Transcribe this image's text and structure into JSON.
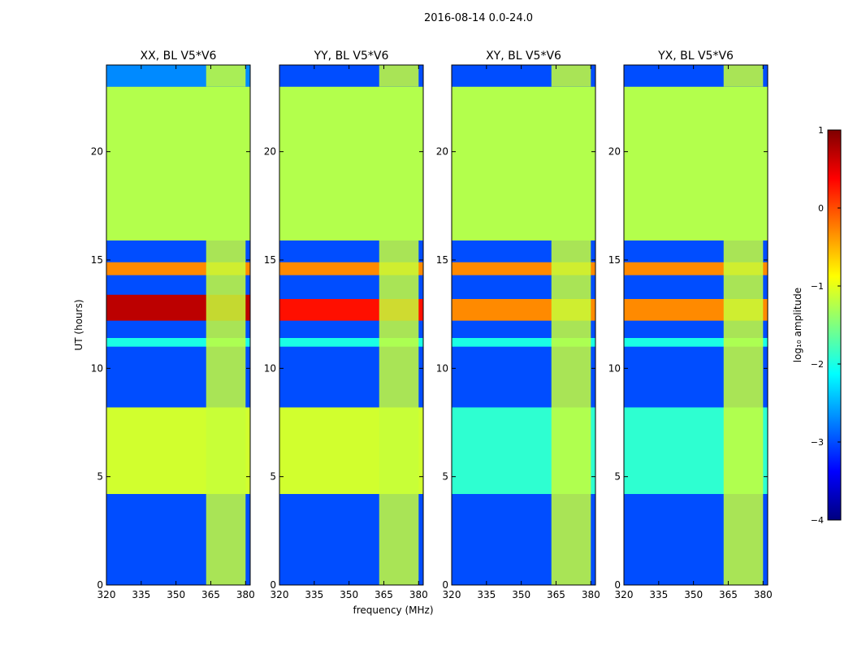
{
  "chart_data": {
    "type": "heatmap",
    "suptitle": "2016-08-14 0.0-24.0",
    "xlabel": "frequency (MHz)",
    "ylabel": "UT (hours)",
    "xlim": [
      320,
      382
    ],
    "ylim": [
      0,
      24
    ],
    "xticks": [
      320,
      335,
      350,
      365,
      380
    ],
    "xtick_labels": [
      "320",
      "335",
      "350",
      "365",
      "380"
    ],
    "yticks": [
      0,
      5,
      10,
      15,
      20
    ],
    "ytick_labels": [
      "0",
      "5",
      "10",
      "15",
      "20"
    ],
    "panels": [
      {
        "title": "XX, BL V5*V6",
        "bands": [
          {
            "start": 0.0,
            "end": 4.2,
            "value": -3.0
          },
          {
            "start": 4.2,
            "end": 8.2,
            "value": -1.1
          },
          {
            "start": 8.2,
            "end": 11.0,
            "value": -3.0
          },
          {
            "start": 11.0,
            "end": 11.4,
            "value": -2.0
          },
          {
            "start": 11.4,
            "end": 12.2,
            "value": -3.0
          },
          {
            "start": 12.2,
            "end": 13.4,
            "value": 0.7
          },
          {
            "start": 13.4,
            "end": 14.3,
            "value": -3.0
          },
          {
            "start": 14.3,
            "end": 14.9,
            "value": -0.3
          },
          {
            "start": 14.9,
            "end": 15.9,
            "value": -3.0
          },
          {
            "start": 15.9,
            "end": 23.0,
            "value": -1.25
          },
          {
            "start": 23.0,
            "end": 24.0,
            "value": -2.7
          }
        ]
      },
      {
        "title": "YY, BL V5*V6",
        "bands": [
          {
            "start": 0.0,
            "end": 4.2,
            "value": -3.0
          },
          {
            "start": 4.2,
            "end": 8.2,
            "value": -1.1
          },
          {
            "start": 8.2,
            "end": 11.0,
            "value": -3.0
          },
          {
            "start": 11.0,
            "end": 11.4,
            "value": -2.0
          },
          {
            "start": 11.4,
            "end": 12.2,
            "value": -3.0
          },
          {
            "start": 12.2,
            "end": 13.2,
            "value": 0.3
          },
          {
            "start": 13.2,
            "end": 14.3,
            "value": -3.0
          },
          {
            "start": 14.3,
            "end": 14.9,
            "value": -0.3
          },
          {
            "start": 14.9,
            "end": 15.9,
            "value": -3.0
          },
          {
            "start": 15.9,
            "end": 23.0,
            "value": -1.25
          },
          {
            "start": 23.0,
            "end": 24.0,
            "value": -3.0
          }
        ]
      },
      {
        "title": "XY, BL V5*V6",
        "bands": [
          {
            "start": 0.0,
            "end": 4.2,
            "value": -3.0
          },
          {
            "start": 4.2,
            "end": 8.2,
            "value": -1.9
          },
          {
            "start": 8.2,
            "end": 11.0,
            "value": -3.0
          },
          {
            "start": 11.0,
            "end": 11.4,
            "value": -2.0
          },
          {
            "start": 11.4,
            "end": 12.2,
            "value": -3.0
          },
          {
            "start": 12.2,
            "end": 13.2,
            "value": -0.3
          },
          {
            "start": 13.2,
            "end": 14.3,
            "value": -3.0
          },
          {
            "start": 14.3,
            "end": 14.9,
            "value": -0.3
          },
          {
            "start": 14.9,
            "end": 15.9,
            "value": -3.0
          },
          {
            "start": 15.9,
            "end": 23.0,
            "value": -1.25
          },
          {
            "start": 23.0,
            "end": 24.0,
            "value": -3.0
          }
        ]
      },
      {
        "title": "YX, BL V5*V6",
        "bands": [
          {
            "start": 0.0,
            "end": 4.2,
            "value": -3.0
          },
          {
            "start": 4.2,
            "end": 8.2,
            "value": -1.9
          },
          {
            "start": 8.2,
            "end": 11.0,
            "value": -3.0
          },
          {
            "start": 11.0,
            "end": 11.4,
            "value": -2.0
          },
          {
            "start": 11.4,
            "end": 12.2,
            "value": -3.0
          },
          {
            "start": 12.2,
            "end": 13.2,
            "value": -0.3
          },
          {
            "start": 13.2,
            "end": 14.3,
            "value": -3.0
          },
          {
            "start": 14.3,
            "end": 14.9,
            "value": -0.3
          },
          {
            "start": 14.9,
            "end": 15.9,
            "value": -3.0
          },
          {
            "start": 15.9,
            "end": 23.0,
            "value": -1.25
          },
          {
            "start": 23.0,
            "end": 24.0,
            "value": -3.0
          }
        ]
      }
    ],
    "rfi_freq_range": [
      363,
      380
    ],
    "colorbar": {
      "label": "log₁₀ amplitude",
      "range": [
        -4,
        1
      ],
      "ticks": [
        1,
        0,
        -1,
        -2,
        -3,
        -4
      ],
      "tick_labels": [
        "1",
        "0",
        "−1",
        "−2",
        "−3",
        "−4"
      ],
      "colormap": "jet"
    }
  }
}
